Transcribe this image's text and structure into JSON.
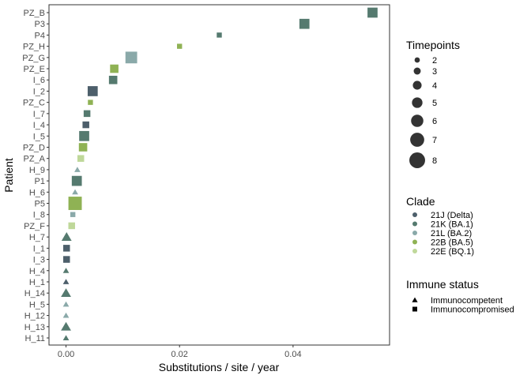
{
  "colors": {
    "21J (Delta)": "#4d5f6b",
    "21K (BA.1)": "#557a6f",
    "21L (BA.2)": "#8aa9a9",
    "22B (BA.5)": "#8fb254",
    "22E (BQ.1)": "#bfd89a",
    "axis": "#333333",
    "tick_text": "#4d4d4d"
  },
  "chart_data": {
    "type": "scatter",
    "xlabel": "Substitutions / site / year",
    "ylabel": "Patient",
    "xlim": [
      -0.003,
      0.057
    ],
    "x_ticks": [
      0.0,
      0.02,
      0.04
    ],
    "x_tick_labels": [
      "0.00",
      "0.02",
      "0.04"
    ],
    "grid": false,
    "points": [
      {
        "patient": "PZ_B",
        "rate": 0.054,
        "clade": "21K (BA.1)",
        "status": "Immunocompromised",
        "timepoints": 5
      },
      {
        "patient": "P3",
        "rate": 0.042,
        "clade": "21K (BA.1)",
        "status": "Immunocompromised",
        "timepoints": 5
      },
      {
        "patient": "P4",
        "rate": 0.027,
        "clade": "21K (BA.1)",
        "status": "Immunocompromised",
        "timepoints": 2
      },
      {
        "patient": "PZ_H",
        "rate": 0.02,
        "clade": "22B (BA.5)",
        "status": "Immunocompromised",
        "timepoints": 2
      },
      {
        "patient": "PZ_G",
        "rate": 0.0115,
        "clade": "21L (BA.2)",
        "status": "Immunocompromised",
        "timepoints": 6
      },
      {
        "patient": "PZ_E",
        "rate": 0.0085,
        "clade": "22B (BA.5)",
        "status": "Immunocompromised",
        "timepoints": 4
      },
      {
        "patient": "I_6",
        "rate": 0.0083,
        "clade": "21K (BA.1)",
        "status": "Immunocompromised",
        "timepoints": 4
      },
      {
        "patient": "I_2",
        "rate": 0.0047,
        "clade": "21J (Delta)",
        "status": "Immunocompromised",
        "timepoints": 5
      },
      {
        "patient": "PZ_C",
        "rate": 0.0043,
        "clade": "22B (BA.5)",
        "status": "Immunocompromised",
        "timepoints": 2
      },
      {
        "patient": "I_7",
        "rate": 0.0037,
        "clade": "21K (BA.1)",
        "status": "Immunocompromised",
        "timepoints": 3
      },
      {
        "patient": "I_4",
        "rate": 0.0035,
        "clade": "21J (Delta)",
        "status": "Immunocompromised",
        "timepoints": 3
      },
      {
        "patient": "I_5",
        "rate": 0.0032,
        "clade": "21K (BA.1)",
        "status": "Immunocompromised",
        "timepoints": 5
      },
      {
        "patient": "PZ_D",
        "rate": 0.003,
        "clade": "22B (BA.5)",
        "status": "Immunocompromised",
        "timepoints": 4
      },
      {
        "patient": "PZ_A",
        "rate": 0.0026,
        "clade": "22E (BQ.1)",
        "status": "Immunocompromised",
        "timepoints": 3
      },
      {
        "patient": "H_9",
        "rate": 0.002,
        "clade": "21L (BA.2)",
        "status": "Immunocompetent",
        "timepoints": 2
      },
      {
        "patient": "P1",
        "rate": 0.0019,
        "clade": "21K (BA.1)",
        "status": "Immunocompromised",
        "timepoints": 5
      },
      {
        "patient": "H_6",
        "rate": 0.0016,
        "clade": "21L (BA.2)",
        "status": "Immunocompetent",
        "timepoints": 2
      },
      {
        "patient": "P5",
        "rate": 0.0016,
        "clade": "22B (BA.5)",
        "status": "Immunocompromised",
        "timepoints": 7
      },
      {
        "patient": "I_8",
        "rate": 0.0012,
        "clade": "21L (BA.2)",
        "status": "Immunocompromised",
        "timepoints": 2
      },
      {
        "patient": "PZ_F",
        "rate": 0.001,
        "clade": "22E (BQ.1)",
        "status": "Immunocompromised",
        "timepoints": 3
      },
      {
        "patient": "H_7",
        "rate": 0.0001,
        "clade": "21K (BA.1)",
        "status": "Immunocompetent",
        "timepoints": 4
      },
      {
        "patient": "I_1",
        "rate": 0.0001,
        "clade": "21J (Delta)",
        "status": "Immunocompromised",
        "timepoints": 3
      },
      {
        "patient": "I_3",
        "rate": 0.0001,
        "clade": "21J (Delta)",
        "status": "Immunocompromised",
        "timepoints": 3
      },
      {
        "patient": "H_4",
        "rate": 0.0,
        "clade": "21K (BA.1)",
        "status": "Immunocompetent",
        "timepoints": 2
      },
      {
        "patient": "H_1",
        "rate": 0.0,
        "clade": "21J (Delta)",
        "status": "Immunocompetent",
        "timepoints": 2
      },
      {
        "patient": "H_14",
        "rate": 0.0,
        "clade": "21K (BA.1)",
        "status": "Immunocompetent",
        "timepoints": 4
      },
      {
        "patient": "H_5",
        "rate": 0.0,
        "clade": "21L (BA.2)",
        "status": "Immunocompetent",
        "timepoints": 2
      },
      {
        "patient": "H_12",
        "rate": 0.0,
        "clade": "21L (BA.2)",
        "status": "Immunocompetent",
        "timepoints": 2
      },
      {
        "patient": "H_13",
        "rate": 0.0,
        "clade": "21K (BA.1)",
        "status": "Immunocompetent",
        "timepoints": 4
      },
      {
        "patient": "H_11",
        "rate": 0.0,
        "clade": "21K (BA.1)",
        "status": "Immunocompetent",
        "timepoints": 2
      }
    ],
    "legends": {
      "timepoints": {
        "title": "Timepoints",
        "values": [
          2,
          3,
          4,
          5,
          6,
          7,
          8
        ],
        "labels": [
          "2",
          "3",
          "4",
          "5",
          "6",
          "7",
          "8"
        ]
      },
      "clade": {
        "title": "Clade",
        "entries": [
          "21J (Delta)",
          "21K (BA.1)",
          "21L (BA.2)",
          "22B (BA.5)",
          "22E (BQ.1)"
        ]
      },
      "immune": {
        "title": "Immune status",
        "entries": [
          "Immunocompetent",
          "Immunocompromised"
        ]
      }
    },
    "legend_position": "right"
  }
}
